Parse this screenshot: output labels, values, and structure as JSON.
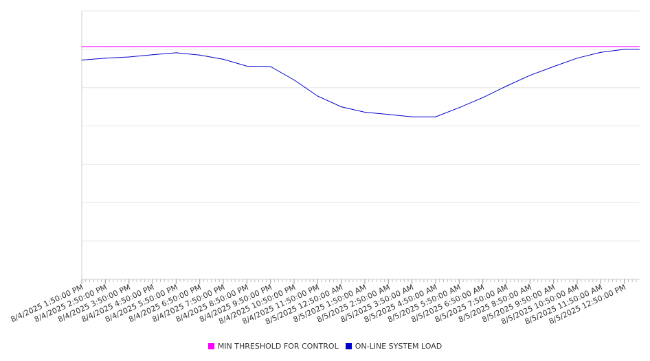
{
  "chart_data": {
    "type": "line",
    "title": "",
    "xlabel": "",
    "ylabel": "",
    "grid": true,
    "legend_placement": "bottom-center",
    "x_tick_labels": [
      "8/4/2025 1:50:00 PM",
      "8/4/2025 2:50:00 PM",
      "8/4/2025 3:50:00 PM",
      "8/4/2025 4:50:00 PM",
      "8/4/2025 5:50:00 PM",
      "8/4/2025 6:50:00 PM",
      "8/4/2025 7:50:00 PM",
      "8/4/2025 8:50:00 PM",
      "8/4/2025 9:50:00 PM",
      "8/4/2025 10:50:00 PM",
      "8/4/2025 11:50:00 PM",
      "8/5/2025 12:50:00 AM",
      "8/5/2025 1:50:00 AM",
      "8/5/2025 2:50:00 AM",
      "8/5/2025 3:50:00 AM",
      "8/5/2025 4:50:00 AM",
      "8/5/2025 5:50:00 AM",
      "8/5/2025 6:50:00 AM",
      "8/5/2025 7:50:00 AM",
      "8/5/2025 8:50:00 AM",
      "8/5/2025 9:50:00 AM",
      "8/5/2025 10:50:00 AM",
      "8/5/2025 11:50:00 AM",
      "8/5/2025 12:50:00 PM"
    ],
    "y_gridlines": 7,
    "ylim": [
      0,
      7
    ],
    "series": [
      {
        "name": "MIN THRESHOLD FOR CONTROL",
        "color": "#ff00ff",
        "values": [
          6.07,
          6.07,
          6.07,
          6.07,
          6.07,
          6.07,
          6.07,
          6.07,
          6.07,
          6.07,
          6.07,
          6.07,
          6.07,
          6.07,
          6.07,
          6.07,
          6.07,
          6.07,
          6.07,
          6.07,
          6.07,
          6.07,
          6.07,
          6.07
        ]
      },
      {
        "name": "ON-LINE SYSTEM LOAD",
        "color": "#0000cc",
        "values": [
          5.72,
          5.77,
          5.8,
          5.86,
          5.91,
          5.85,
          5.74,
          5.56,
          5.55,
          5.2,
          4.78,
          4.5,
          4.36,
          4.3,
          4.24,
          4.24,
          4.48,
          4.74,
          5.04,
          5.32,
          5.55,
          5.77,
          5.92,
          6.0
        ]
      }
    ]
  }
}
